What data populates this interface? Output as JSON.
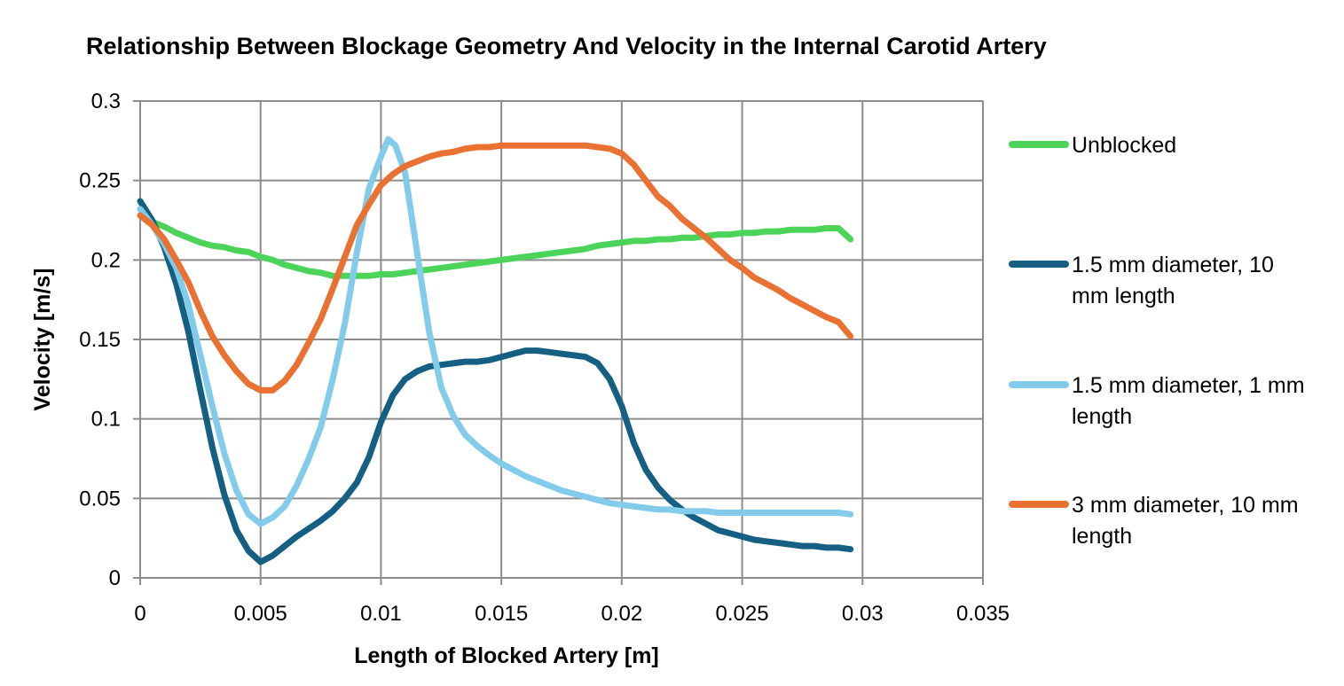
{
  "chart_data": {
    "type": "line",
    "title": "Relationship Between Blockage Geometry And Velocity in the Internal Carotid Artery",
    "xlabel": "Length of Blocked Artery [m]",
    "ylabel": "Velocity [m/s]",
    "xlim": [
      0,
      0.035
    ],
    "ylim": [
      0,
      0.3
    ],
    "x_ticks": [
      "0",
      "0.005",
      "0.01",
      "0.015",
      "0.02",
      "0.025",
      "0.03",
      "0.035"
    ],
    "y_ticks": [
      "0",
      "0.05",
      "0.1",
      "0.15",
      "0.2",
      "0.25",
      "0.3"
    ],
    "grid": true,
    "legend_position": "right",
    "series": [
      {
        "name": "Unblocked",
        "color": "#4cd45a",
        "x": [
          0,
          0.0005,
          0.001,
          0.0015,
          0.002,
          0.0025,
          0.003,
          0.0035,
          0.004,
          0.0045,
          0.005,
          0.0055,
          0.006,
          0.0065,
          0.007,
          0.0075,
          0.008,
          0.0085,
          0.009,
          0.0095,
          0.01,
          0.0105,
          0.011,
          0.0115,
          0.012,
          0.0125,
          0.013,
          0.0135,
          0.014,
          0.0145,
          0.015,
          0.0155,
          0.016,
          0.0165,
          0.017,
          0.0175,
          0.018,
          0.0185,
          0.019,
          0.0195,
          0.02,
          0.0205,
          0.021,
          0.0215,
          0.022,
          0.0225,
          0.023,
          0.0235,
          0.024,
          0.0245,
          0.025,
          0.0255,
          0.026,
          0.0265,
          0.027,
          0.0275,
          0.028,
          0.0285,
          0.029,
          0.0295
        ],
        "y": [
          0.228,
          0.224,
          0.221,
          0.217,
          0.214,
          0.211,
          0.209,
          0.208,
          0.206,
          0.205,
          0.202,
          0.2,
          0.197,
          0.195,
          0.193,
          0.192,
          0.19,
          0.19,
          0.19,
          0.19,
          0.191,
          0.191,
          0.192,
          0.193,
          0.194,
          0.195,
          0.196,
          0.197,
          0.198,
          0.199,
          0.2,
          0.201,
          0.202,
          0.203,
          0.204,
          0.205,
          0.206,
          0.207,
          0.209,
          0.21,
          0.211,
          0.212,
          0.212,
          0.213,
          0.213,
          0.214,
          0.214,
          0.215,
          0.216,
          0.216,
          0.217,
          0.217,
          0.218,
          0.218,
          0.219,
          0.219,
          0.219,
          0.22,
          0.22,
          0.213
        ]
      },
      {
        "name": "1.5 mm diameter, 10 mm length",
        "color": "#156082",
        "x": [
          0,
          0.0005,
          0.001,
          0.0015,
          0.002,
          0.0025,
          0.003,
          0.0035,
          0.004,
          0.0045,
          0.005,
          0.0055,
          0.006,
          0.0065,
          0.007,
          0.0075,
          0.008,
          0.0085,
          0.009,
          0.0095,
          0.01,
          0.0105,
          0.011,
          0.0115,
          0.012,
          0.0125,
          0.013,
          0.0135,
          0.014,
          0.0145,
          0.015,
          0.0155,
          0.016,
          0.0165,
          0.017,
          0.0175,
          0.018,
          0.0185,
          0.019,
          0.0195,
          0.02,
          0.0205,
          0.021,
          0.0215,
          0.022,
          0.0225,
          0.023,
          0.0235,
          0.024,
          0.0245,
          0.025,
          0.0255,
          0.026,
          0.0265,
          0.027,
          0.0275,
          0.028,
          0.0285,
          0.029,
          0.0295
        ],
        "y": [
          0.237,
          0.225,
          0.208,
          0.185,
          0.155,
          0.118,
          0.082,
          0.052,
          0.03,
          0.017,
          0.01,
          0.014,
          0.02,
          0.026,
          0.031,
          0.036,
          0.042,
          0.05,
          0.06,
          0.076,
          0.098,
          0.115,
          0.125,
          0.13,
          0.133,
          0.134,
          0.135,
          0.136,
          0.136,
          0.137,
          0.139,
          0.141,
          0.143,
          0.143,
          0.142,
          0.141,
          0.14,
          0.139,
          0.135,
          0.125,
          0.108,
          0.085,
          0.068,
          0.057,
          0.049,
          0.043,
          0.038,
          0.034,
          0.03,
          0.028,
          0.026,
          0.024,
          0.023,
          0.022,
          0.021,
          0.02,
          0.02,
          0.019,
          0.019,
          0.018
        ]
      },
      {
        "name": "1.5 mm diameter, 1 mm length",
        "color": "#83cbeb",
        "x": [
          0,
          0.0005,
          0.001,
          0.0015,
          0.002,
          0.0025,
          0.003,
          0.0035,
          0.004,
          0.0045,
          0.005,
          0.0055,
          0.006,
          0.0065,
          0.007,
          0.0075,
          0.008,
          0.0085,
          0.009,
          0.0095,
          0.01,
          0.0103,
          0.0106,
          0.011,
          0.0115,
          0.012,
          0.0125,
          0.013,
          0.0135,
          0.014,
          0.0145,
          0.015,
          0.0155,
          0.016,
          0.0165,
          0.017,
          0.0175,
          0.018,
          0.0185,
          0.019,
          0.0195,
          0.02,
          0.0205,
          0.021,
          0.0215,
          0.022,
          0.0225,
          0.023,
          0.0235,
          0.024,
          0.0245,
          0.025,
          0.0255,
          0.026,
          0.0265,
          0.027,
          0.0275,
          0.028,
          0.0285,
          0.029,
          0.0295
        ],
        "y": [
          0.232,
          0.222,
          0.21,
          0.195,
          0.172,
          0.14,
          0.108,
          0.078,
          0.055,
          0.04,
          0.034,
          0.038,
          0.045,
          0.058,
          0.075,
          0.095,
          0.125,
          0.16,
          0.205,
          0.245,
          0.265,
          0.276,
          0.272,
          0.255,
          0.205,
          0.155,
          0.12,
          0.102,
          0.09,
          0.083,
          0.077,
          0.072,
          0.068,
          0.064,
          0.061,
          0.058,
          0.055,
          0.053,
          0.051,
          0.049,
          0.047,
          0.046,
          0.045,
          0.044,
          0.043,
          0.043,
          0.042,
          0.042,
          0.042,
          0.041,
          0.041,
          0.041,
          0.041,
          0.041,
          0.041,
          0.041,
          0.041,
          0.041,
          0.041,
          0.041,
          0.04
        ]
      },
      {
        "name": "3 mm diameter, 10 mm length",
        "color": "#e97132",
        "x": [
          0,
          0.0005,
          0.001,
          0.0015,
          0.002,
          0.0025,
          0.003,
          0.0035,
          0.004,
          0.0045,
          0.005,
          0.0055,
          0.006,
          0.0065,
          0.007,
          0.0075,
          0.008,
          0.0085,
          0.009,
          0.0095,
          0.01,
          0.0105,
          0.011,
          0.0115,
          0.012,
          0.0125,
          0.013,
          0.0135,
          0.014,
          0.0145,
          0.015,
          0.0155,
          0.016,
          0.0165,
          0.017,
          0.0175,
          0.018,
          0.0185,
          0.019,
          0.0195,
          0.02,
          0.0205,
          0.021,
          0.0215,
          0.022,
          0.0225,
          0.023,
          0.0235,
          0.024,
          0.0245,
          0.025,
          0.0255,
          0.026,
          0.0265,
          0.027,
          0.0275,
          0.028,
          0.0285,
          0.029,
          0.0295
        ],
        "y": [
          0.228,
          0.222,
          0.213,
          0.2,
          0.186,
          0.168,
          0.152,
          0.14,
          0.13,
          0.122,
          0.118,
          0.118,
          0.124,
          0.134,
          0.148,
          0.163,
          0.182,
          0.202,
          0.222,
          0.235,
          0.247,
          0.254,
          0.259,
          0.262,
          0.265,
          0.267,
          0.268,
          0.27,
          0.271,
          0.271,
          0.272,
          0.272,
          0.272,
          0.272,
          0.272,
          0.272,
          0.272,
          0.272,
          0.271,
          0.27,
          0.267,
          0.26,
          0.25,
          0.24,
          0.234,
          0.226,
          0.22,
          0.214,
          0.207,
          0.2,
          0.195,
          0.189,
          0.185,
          0.181,
          0.176,
          0.172,
          0.168,
          0.164,
          0.161,
          0.152
        ]
      }
    ]
  }
}
